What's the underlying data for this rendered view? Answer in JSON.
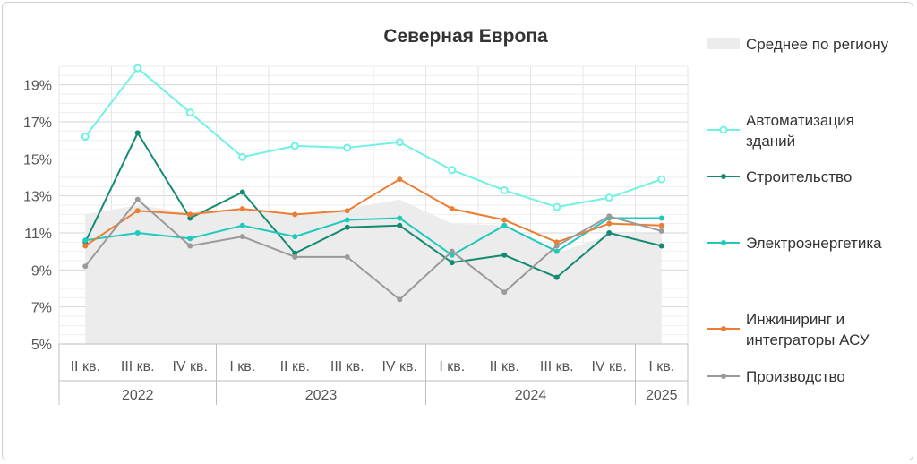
{
  "chart_data": {
    "type": "line",
    "title": "Северная Европа",
    "quarters": [
      "II кв.",
      "III кв.",
      "IV кв.",
      "I кв.",
      "II кв.",
      "III кв.",
      "IV кв.",
      "I кв.",
      "II кв.",
      "III кв.",
      "IV кв.",
      "I кв."
    ],
    "years": [
      {
        "label": "2022",
        "start": 0,
        "end": 2
      },
      {
        "label": "2023",
        "start": 3,
        "end": 6
      },
      {
        "label": "2024",
        "start": 7,
        "end": 10
      },
      {
        "label": "2025",
        "start": 11,
        "end": 11
      }
    ],
    "y_ticks": [
      "5%",
      "7%",
      "9%",
      "11%",
      "13%",
      "15%",
      "17%",
      "19%"
    ],
    "ylim": [
      5,
      20
    ],
    "area": {
      "name": "Среднее по региону",
      "color": "#ececec",
      "values": [
        12.0,
        12.5,
        12.1,
        12.3,
        12.0,
        12.3,
        12.8,
        11.5,
        11.4,
        9.9,
        10.9,
        11.0
      ]
    },
    "series": [
      {
        "name": "Автоматизация зданий",
        "color": "#6ff2e3",
        "marker": "open",
        "values": [
          16.2,
          19.9,
          17.5,
          15.1,
          15.7,
          15.6,
          15.9,
          14.4,
          13.3,
          12.4,
          12.9,
          13.9
        ]
      },
      {
        "name": "Строительство",
        "color": "#138a72",
        "marker": "filled",
        "values": [
          10.5,
          16.4,
          11.8,
          13.2,
          9.9,
          11.3,
          11.4,
          9.4,
          9.8,
          8.6,
          11.0,
          10.3
        ]
      },
      {
        "name": "Электроэнергетика",
        "color": "#1fc9bc",
        "marker": "filled",
        "values": [
          10.6,
          11.0,
          10.7,
          11.4,
          10.8,
          11.7,
          11.8,
          9.8,
          11.4,
          10.0,
          11.8,
          11.8
        ]
      },
      {
        "name": "Инжиниринг и интеграторы АСУ",
        "color": "#ec7d32",
        "marker": "filled",
        "values": [
          10.3,
          12.2,
          12.0,
          12.3,
          12.0,
          12.2,
          13.9,
          12.3,
          11.7,
          10.5,
          11.5,
          11.4
        ]
      },
      {
        "name": "Производство",
        "color": "#9a9a9a",
        "marker": "filled",
        "values": [
          9.2,
          12.8,
          10.3,
          10.8,
          9.7,
          9.7,
          7.4,
          10.0,
          7.8,
          10.3,
          11.9,
          11.1
        ]
      }
    ],
    "legend": [
      {
        "kind": "area",
        "lines": [
          "Среднее по региону"
        ],
        "color": "#ececec"
      },
      {
        "kind": "series",
        "lines": [
          "Автоматизация",
          "зданий"
        ],
        "color": "#6ff2e3",
        "marker": "open"
      },
      {
        "kind": "series",
        "lines": [
          "Строительство"
        ],
        "color": "#138a72",
        "marker": "filled"
      },
      {
        "kind": "series",
        "lines": [
          "Электроэнергетика"
        ],
        "color": "#1fc9bc",
        "marker": "filled"
      },
      {
        "kind": "series",
        "lines": [
          "Инжиниринг и",
          "интеграторы АСУ"
        ],
        "color": "#ec7d32",
        "marker": "filled"
      },
      {
        "kind": "series",
        "lines": [
          "Производство"
        ],
        "color": "#9a9a9a",
        "marker": "filled"
      }
    ],
    "grid": true,
    "legend_position": "right"
  }
}
